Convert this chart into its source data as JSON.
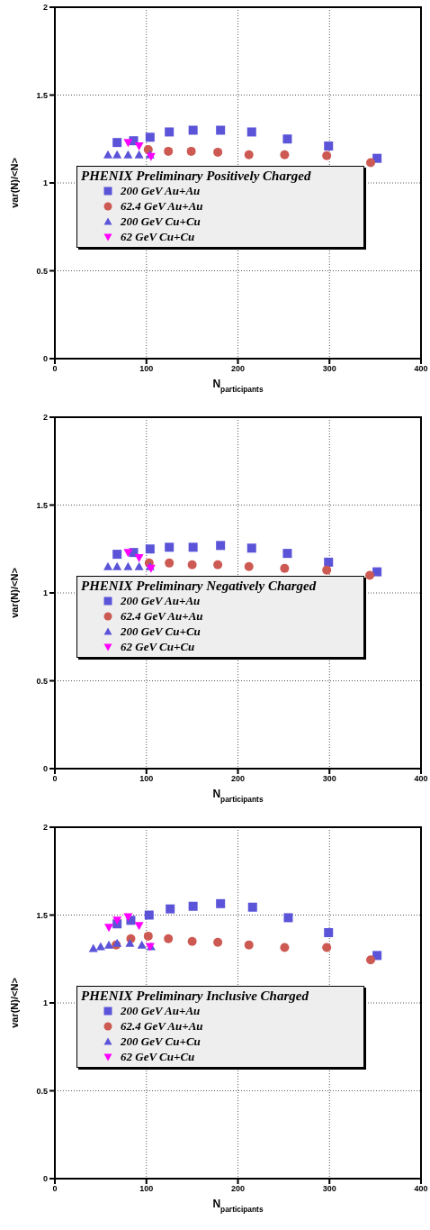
{
  "chart_data": [
    {
      "type": "scatter",
      "legend_title": "PHENIX Preliminary Positively Charged",
      "xlabel": "N$_{participants}$",
      "ylabel": "var(N)/<N>",
      "xlim": [
        0,
        400
      ],
      "xticks": [
        0,
        100,
        200,
        300,
        400
      ],
      "ylim": [
        0,
        2
      ],
      "yticks": [
        0,
        0.5,
        1,
        1.5,
        2
      ],
      "grid": true,
      "legend": "bottom",
      "series": [
        {
          "name": "200 GeV Au+Au",
          "color": "#5b54d8",
          "marker": "square",
          "x": [
            68,
            86,
            104,
            125,
            151,
            181,
            215,
            254,
            299,
            352
          ],
          "values": [
            1.23,
            1.24,
            1.26,
            1.29,
            1.3,
            1.3,
            1.29,
            1.25,
            1.21,
            1.14
          ]
        },
        {
          "name": "62.4 GeV Au+Au",
          "color": "#cd5a52",
          "marker": "circle",
          "x": [
            102,
            124,
            149,
            178,
            212,
            251,
            297,
            345
          ],
          "values": [
            1.19,
            1.18,
            1.18,
            1.175,
            1.16,
            1.16,
            1.155,
            1.115
          ]
        },
        {
          "name": "200 GeV Cu+Cu",
          "color": "#5b54d8",
          "marker": "triangle",
          "x": [
            58,
            68,
            80,
            92,
            104
          ],
          "values": [
            1.16,
            1.16,
            1.16,
            1.16,
            1.16
          ]
        },
        {
          "name": "62 GeV Cu+Cu",
          "color": "#ff00ff",
          "marker": "triangle_down",
          "x": [
            80,
            92,
            105
          ],
          "values": [
            1.23,
            1.21,
            1.15
          ]
        }
      ]
    },
    {
      "type": "scatter",
      "legend_title": "PHENIX Preliminary Negatively Charged",
      "xlabel": "N$_{participants}$",
      "ylabel": "var(N)/<N>",
      "xlim": [
        0,
        400
      ],
      "xticks": [
        0,
        100,
        200,
        300,
        400
      ],
      "ylim": [
        0,
        2
      ],
      "yticks": [
        0,
        0.5,
        1,
        1.5,
        2
      ],
      "grid": true,
      "legend": "bottom",
      "series": [
        {
          "name": "200 GeV Au+Au",
          "color": "#5b54d8",
          "marker": "square",
          "x": [
            68,
            86,
            104,
            125,
            151,
            181,
            215,
            254,
            299,
            352
          ],
          "values": [
            1.22,
            1.23,
            1.25,
            1.26,
            1.26,
            1.27,
            1.255,
            1.225,
            1.175,
            1.12
          ]
        },
        {
          "name": "62.4 GeV Au+Au",
          "color": "#cd5a52",
          "marker": "circle",
          "x": [
            103,
            125,
            150,
            178,
            212,
            251,
            297,
            344
          ],
          "values": [
            1.17,
            1.17,
            1.16,
            1.16,
            1.15,
            1.14,
            1.13,
            1.1
          ]
        },
        {
          "name": "200 GeV Cu+Cu",
          "color": "#5b54d8",
          "marker": "triangle",
          "x": [
            58,
            68,
            80,
            92,
            104
          ],
          "values": [
            1.15,
            1.15,
            1.15,
            1.15,
            1.15
          ]
        },
        {
          "name": "62 GeV Cu+Cu",
          "color": "#ff00ff",
          "marker": "triangle_down",
          "x": [
            80,
            92,
            105
          ],
          "values": [
            1.23,
            1.2,
            1.14
          ]
        }
      ]
    },
    {
      "type": "scatter",
      "legend_title": "PHENIX Preliminary Inclusive Charged",
      "xlabel": "N$_{participants}$",
      "ylabel": "var(N)/<N>",
      "xlim": [
        0,
        400
      ],
      "xticks": [
        0,
        100,
        200,
        300,
        400
      ],
      "ylim": [
        0,
        2
      ],
      "yticks": [
        0,
        0.5,
        1,
        1.5,
        2
      ],
      "grid": true,
      "legend": "bottom",
      "series": [
        {
          "name": "200 GeV Au+Au",
          "color": "#5b54d8",
          "marker": "square",
          "x": [
            68,
            83,
            103,
            126,
            151,
            181,
            216,
            255,
            299,
            352
          ],
          "values": [
            1.45,
            1.47,
            1.5,
            1.535,
            1.55,
            1.565,
            1.545,
            1.485,
            1.4,
            1.27
          ]
        },
        {
          "name": "62.4 GeV Au+Au",
          "color": "#cd5a52",
          "marker": "circle",
          "x": [
            67,
            83,
            102,
            124,
            150,
            178,
            212,
            251,
            297,
            345
          ],
          "values": [
            1.33,
            1.365,
            1.38,
            1.365,
            1.35,
            1.345,
            1.33,
            1.315,
            1.315,
            1.245
          ]
        },
        {
          "name": "200 GeV Cu+Cu",
          "color": "#5b54d8",
          "marker": "triangle",
          "x": [
            42,
            50,
            59,
            68,
            82,
            95,
            105
          ],
          "values": [
            1.31,
            1.32,
            1.33,
            1.34,
            1.34,
            1.33,
            1.32
          ]
        },
        {
          "name": "62 GeV Cu+Cu",
          "color": "#ff00ff",
          "marker": "triangle_down",
          "x": [
            59,
            68,
            80,
            92,
            104
          ],
          "values": [
            1.43,
            1.47,
            1.49,
            1.44,
            1.32
          ]
        }
      ]
    }
  ]
}
